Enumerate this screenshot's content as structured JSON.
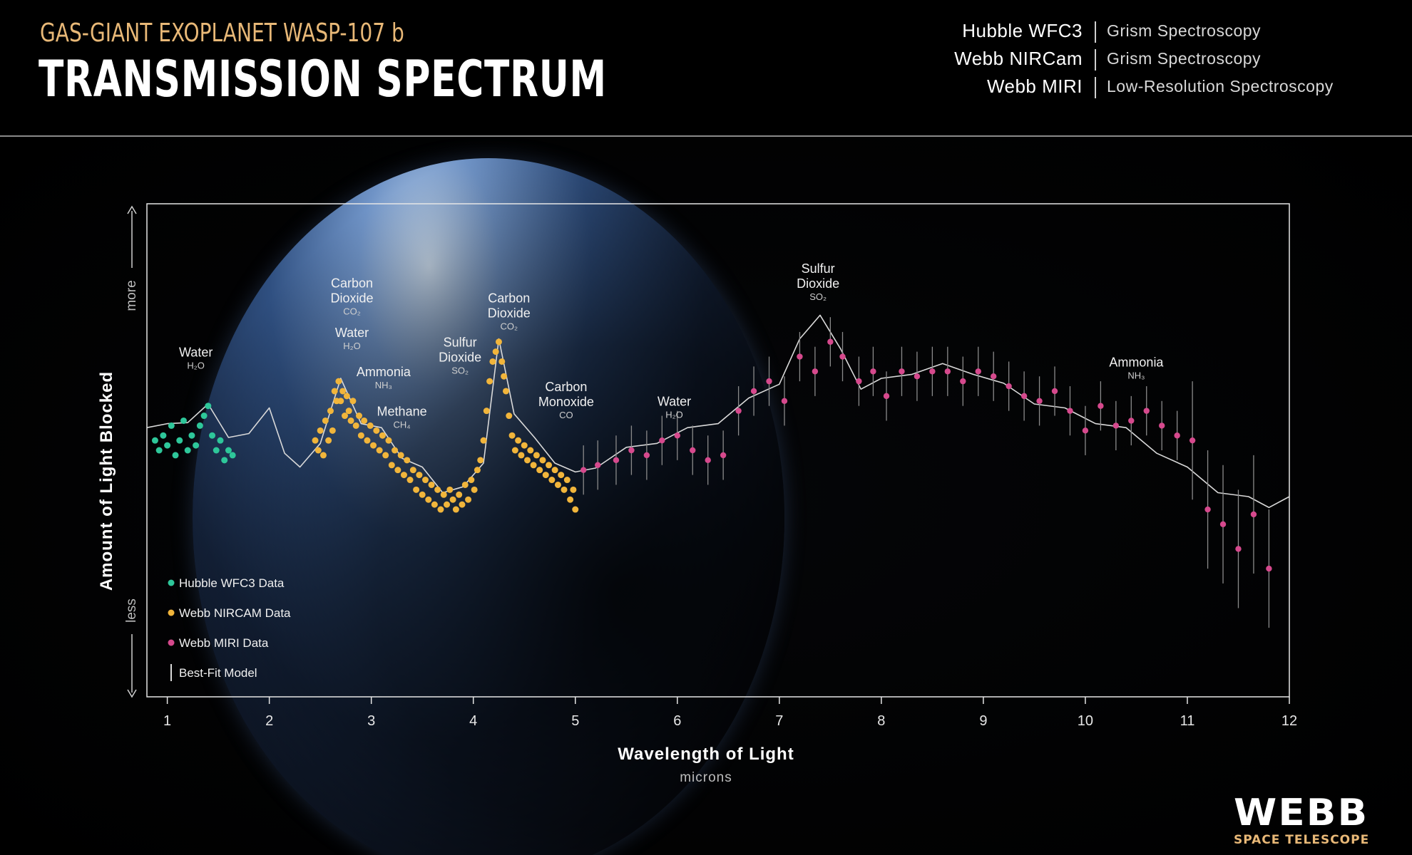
{
  "header": {
    "subtitle": "GAS-GIANT EXOPLANET WASP-107 b",
    "title": "TRANSMISSION SPECTRUM",
    "instruments": [
      {
        "name": "Hubble WFC3",
        "method": "Grism Spectroscopy"
      },
      {
        "name": "Webb NIRCam",
        "method": "Grism Spectroscopy"
      },
      {
        "name": "Webb MIRI",
        "method": "Low-Resolution Spectroscopy"
      }
    ]
  },
  "colors": {
    "hubble": "#2ec79a",
    "nircam": "#f1b53b",
    "miri": "#d6498d",
    "model": "#d9d9d9",
    "subtitle": "#e8b877"
  },
  "logo": {
    "word": "WEBB",
    "sub": "SPACE TELESCOPE"
  },
  "chart_data": {
    "type": "scatter",
    "xlabel": "Wavelength of Light",
    "xunit": "microns",
    "ylabel": "Amount of Light Blocked",
    "ylabel_more": "more",
    "ylabel_less": "less",
    "xlim": [
      0.8,
      12.0
    ],
    "ylim": [
      0,
      100
    ],
    "xticks": [
      1,
      2,
      3,
      4,
      5,
      6,
      7,
      8,
      9,
      10,
      11,
      12
    ],
    "legend": {
      "position": "bottom-left",
      "entries": [
        {
          "label": "Hubble WFC3 Data",
          "series": "hubble"
        },
        {
          "label": "Webb NIRCAM Data",
          "series": "nircam"
        },
        {
          "label": "Webb MIRI Data",
          "series": "miri"
        },
        {
          "label": "Best-Fit Model",
          "series": "model"
        }
      ]
    },
    "annotations": [
      {
        "label": [
          "Water"
        ],
        "formula": "H2O",
        "x": 1.28,
        "y": 69
      },
      {
        "label": [
          "Carbon",
          "Dioxide"
        ],
        "formula": "CO2",
        "x": 2.81,
        "y": 83
      },
      {
        "label": [
          "Water"
        ],
        "formula": "H2O",
        "x": 2.81,
        "y": 73
      },
      {
        "label": [
          "Ammonia"
        ],
        "formula": "NH3",
        "x": 3.12,
        "y": 65
      },
      {
        "label": [
          "Methane"
        ],
        "formula": "CH4",
        "x": 3.3,
        "y": 57
      },
      {
        "label": [
          "Sulfur",
          "Dioxide"
        ],
        "formula": "SO2",
        "x": 3.87,
        "y": 71
      },
      {
        "label": [
          "Carbon",
          "Dioxide"
        ],
        "formula": "CO2",
        "x": 4.35,
        "y": 80
      },
      {
        "label": [
          "Carbon",
          "Monoxide"
        ],
        "formula": "CO",
        "x": 4.91,
        "y": 62
      },
      {
        "label": [
          "Water"
        ],
        "formula": "H2O",
        "x": 5.97,
        "y": 59
      },
      {
        "label": [
          "Sulfur",
          "Dioxide"
        ],
        "formula": "SO2",
        "x": 7.38,
        "y": 86
      },
      {
        "label": [
          "Ammonia"
        ],
        "formula": "NH3",
        "x": 10.5,
        "y": 67
      }
    ],
    "series": [
      {
        "id": "hubble",
        "name": "Hubble WFC3 Data",
        "points": [
          [
            0.88,
            52
          ],
          [
            0.92,
            50
          ],
          [
            0.96,
            53
          ],
          [
            1.0,
            51
          ],
          [
            1.04,
            55
          ],
          [
            1.08,
            49
          ],
          [
            1.12,
            52
          ],
          [
            1.16,
            56
          ],
          [
            1.2,
            50
          ],
          [
            1.24,
            53
          ],
          [
            1.28,
            51
          ],
          [
            1.32,
            55
          ],
          [
            1.36,
            57
          ],
          [
            1.4,
            59
          ],
          [
            1.44,
            53
          ],
          [
            1.48,
            50
          ],
          [
            1.52,
            52
          ],
          [
            1.56,
            48
          ],
          [
            1.6,
            50
          ],
          [
            1.64,
            49
          ]
        ]
      },
      {
        "id": "nircam",
        "name": "Webb NIRCAM Data",
        "points": [
          [
            2.45,
            52
          ],
          [
            2.48,
            50
          ],
          [
            2.5,
            54
          ],
          [
            2.53,
            49
          ],
          [
            2.55,
            56
          ],
          [
            2.58,
            52
          ],
          [
            2.6,
            58
          ],
          [
            2.62,
            54
          ],
          [
            2.64,
            62
          ],
          [
            2.66,
            60
          ],
          [
            2.68,
            64
          ],
          [
            2.7,
            60
          ],
          [
            2.72,
            62
          ],
          [
            2.74,
            57
          ],
          [
            2.76,
            61
          ],
          [
            2.78,
            58
          ],
          [
            2.8,
            56
          ],
          [
            2.82,
            60
          ],
          [
            2.85,
            55
          ],
          [
            2.88,
            57
          ],
          [
            2.9,
            53
          ],
          [
            2.93,
            56
          ],
          [
            2.96,
            52
          ],
          [
            2.99,
            55
          ],
          [
            3.02,
            51
          ],
          [
            3.05,
            54
          ],
          [
            3.08,
            50
          ],
          [
            3.11,
            53
          ],
          [
            3.14,
            49
          ],
          [
            3.17,
            52
          ],
          [
            3.2,
            47
          ],
          [
            3.23,
            50
          ],
          [
            3.26,
            46
          ],
          [
            3.29,
            49
          ],
          [
            3.32,
            45
          ],
          [
            3.35,
            48
          ],
          [
            3.38,
            44
          ],
          [
            3.41,
            46
          ],
          [
            3.44,
            42
          ],
          [
            3.47,
            45
          ],
          [
            3.5,
            41
          ],
          [
            3.53,
            44
          ],
          [
            3.56,
            40
          ],
          [
            3.59,
            43
          ],
          [
            3.62,
            39
          ],
          [
            3.65,
            42
          ],
          [
            3.68,
            38
          ],
          [
            3.71,
            41
          ],
          [
            3.74,
            39
          ],
          [
            3.77,
            42
          ],
          [
            3.8,
            40
          ],
          [
            3.83,
            38
          ],
          [
            3.86,
            41
          ],
          [
            3.89,
            39
          ],
          [
            3.92,
            43
          ],
          [
            3.95,
            40
          ],
          [
            3.98,
            44
          ],
          [
            4.01,
            42
          ],
          [
            4.04,
            46
          ],
          [
            4.07,
            48
          ],
          [
            4.1,
            52
          ],
          [
            4.13,
            58
          ],
          [
            4.16,
            64
          ],
          [
            4.19,
            68
          ],
          [
            4.22,
            70
          ],
          [
            4.25,
            72
          ],
          [
            4.28,
            68
          ],
          [
            4.3,
            65
          ],
          [
            4.32,
            62
          ],
          [
            4.35,
            57
          ],
          [
            4.38,
            53
          ],
          [
            4.41,
            50
          ],
          [
            4.44,
            52
          ],
          [
            4.47,
            49
          ],
          [
            4.5,
            51
          ],
          [
            4.53,
            48
          ],
          [
            4.56,
            50
          ],
          [
            4.59,
            47
          ],
          [
            4.62,
            49
          ],
          [
            4.65,
            46
          ],
          [
            4.68,
            48
          ],
          [
            4.71,
            45
          ],
          [
            4.74,
            47
          ],
          [
            4.77,
            44
          ],
          [
            4.8,
            46
          ],
          [
            4.83,
            43
          ],
          [
            4.86,
            45
          ],
          [
            4.89,
            42
          ],
          [
            4.92,
            44
          ],
          [
            4.95,
            40
          ],
          [
            4.98,
            42
          ],
          [
            5.0,
            38
          ]
        ]
      },
      {
        "id": "miri",
        "name": "Webb MIRI Data",
        "points": [
          [
            5.08,
            46
          ],
          [
            5.22,
            47
          ],
          [
            5.4,
            48
          ],
          [
            5.55,
            50
          ],
          [
            5.7,
            49
          ],
          [
            5.85,
            52
          ],
          [
            6.0,
            53
          ],
          [
            6.15,
            50
          ],
          [
            6.3,
            48
          ],
          [
            6.45,
            49
          ],
          [
            6.6,
            58
          ],
          [
            6.75,
            62
          ],
          [
            6.9,
            64
          ],
          [
            7.05,
            60
          ],
          [
            7.2,
            69
          ],
          [
            7.35,
            66
          ],
          [
            7.5,
            72
          ],
          [
            7.62,
            69
          ],
          [
            7.78,
            64
          ],
          [
            7.92,
            66
          ],
          [
            8.05,
            61
          ],
          [
            8.2,
            66
          ],
          [
            8.35,
            65
          ],
          [
            8.5,
            66
          ],
          [
            8.65,
            66
          ],
          [
            8.8,
            64
          ],
          [
            8.95,
            66
          ],
          [
            9.1,
            65
          ],
          [
            9.25,
            63
          ],
          [
            9.4,
            61
          ],
          [
            9.55,
            60
          ],
          [
            9.7,
            62
          ],
          [
            9.85,
            58
          ],
          [
            10.0,
            54
          ],
          [
            10.15,
            59
          ],
          [
            10.3,
            55
          ],
          [
            10.45,
            56
          ],
          [
            10.6,
            58
          ],
          [
            10.75,
            55
          ],
          [
            10.9,
            53
          ],
          [
            11.05,
            52
          ],
          [
            11.2,
            38
          ],
          [
            11.35,
            35
          ],
          [
            11.5,
            30
          ],
          [
            11.65,
            37
          ],
          [
            11.8,
            26
          ]
        ]
      }
    ],
    "model": [
      [
        0.8,
        54
      ],
      [
        1.0,
        56
      ],
      [
        1.2,
        55
      ],
      [
        1.4,
        60
      ],
      [
        1.6,
        52
      ],
      [
        1.8,
        54
      ],
      [
        2.0,
        58
      ],
      [
        2.15,
        50
      ],
      [
        2.3,
        46
      ],
      [
        2.5,
        52
      ],
      [
        2.7,
        64
      ],
      [
        2.9,
        56
      ],
      [
        3.1,
        54
      ],
      [
        3.3,
        49
      ],
      [
        3.5,
        46
      ],
      [
        3.7,
        42
      ],
      [
        3.9,
        42
      ],
      [
        4.1,
        48
      ],
      [
        4.25,
        72
      ],
      [
        4.4,
        58
      ],
      [
        4.6,
        52
      ],
      [
        4.8,
        48
      ],
      [
        5.0,
        45
      ],
      [
        5.2,
        47
      ],
      [
        5.5,
        50
      ],
      [
        5.8,
        52
      ],
      [
        6.1,
        54
      ],
      [
        6.4,
        56
      ],
      [
        6.7,
        60
      ],
      [
        7.0,
        64
      ],
      [
        7.2,
        72
      ],
      [
        7.4,
        78
      ],
      [
        7.6,
        70
      ],
      [
        7.8,
        63
      ],
      [
        8.0,
        64
      ],
      [
        8.3,
        66
      ],
      [
        8.6,
        67
      ],
      [
        8.9,
        66
      ],
      [
        9.2,
        63
      ],
      [
        9.5,
        60
      ],
      [
        9.8,
        58
      ],
      [
        10.1,
        56
      ],
      [
        10.4,
        54
      ],
      [
        10.7,
        50
      ],
      [
        11.0,
        46
      ],
      [
        11.3,
        42
      ],
      [
        11.6,
        40
      ],
      [
        11.8,
        39
      ],
      [
        12.0,
        40
      ]
    ]
  }
}
